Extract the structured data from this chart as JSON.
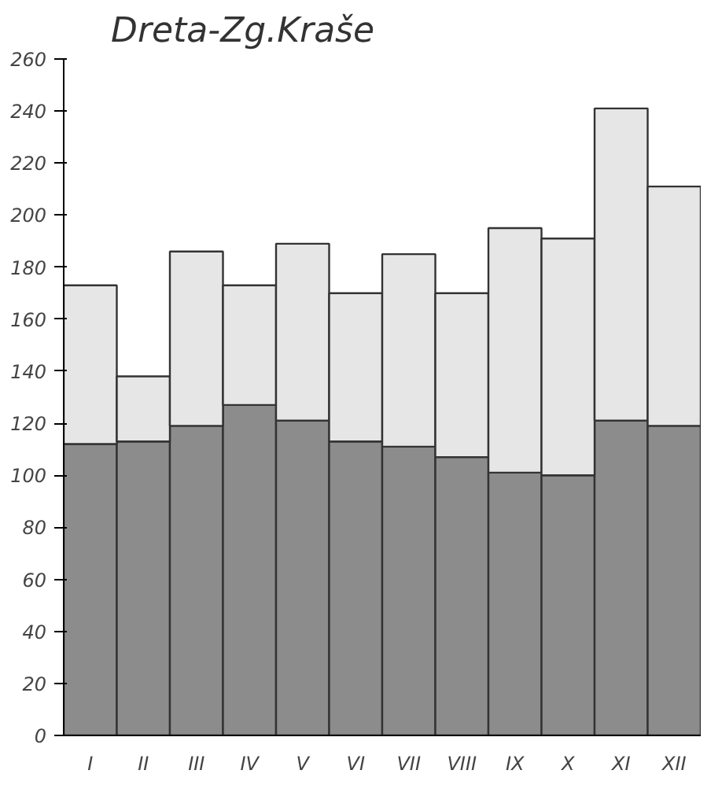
{
  "chart_data": {
    "type": "bar",
    "title": "Dreta-Zg.Kraše",
    "stacked": true,
    "categories": [
      "I",
      "II",
      "III",
      "IV",
      "V",
      "VI",
      "VII",
      "VIII",
      "IX",
      "X",
      "XI",
      "XII"
    ],
    "series": [
      {
        "color": "#8c8c8c",
        "values": [
          112,
          113,
          119,
          127,
          121,
          113,
          111,
          107,
          101,
          100,
          121,
          119
        ]
      },
      {
        "color": "#e6e6e6",
        "values": [
          61,
          25,
          67,
          46,
          68,
          57,
          74,
          63,
          94,
          91,
          120,
          92
        ]
      }
    ],
    "ylim": [
      0,
      260
    ],
    "yticks": [
      0,
      20,
      40,
      60,
      80,
      100,
      120,
      140,
      160,
      180,
      200,
      220,
      240,
      260
    ],
    "grid": false
  }
}
